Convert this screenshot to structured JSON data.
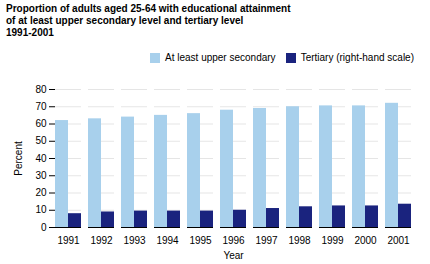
{
  "chart_data": {
    "type": "bar",
    "title": "Proportion of adults aged 25-64 with educational attainment\nof at least upper secondary level and tertiary level\n1991-2001",
    "categories": [
      "1991",
      "1992",
      "1993",
      "1994",
      "1995",
      "1996",
      "1997",
      "1998",
      "1999",
      "2000",
      "2001"
    ],
    "series": [
      {
        "name": "At least upper secondary",
        "color": "#a8d0ec",
        "values": [
          62,
          63,
          64,
          65,
          66,
          68,
          69,
          70,
          70.5,
          70.5,
          72
        ]
      },
      {
        "name": "Tertiary (right-hand scale)",
        "color": "#1a237e",
        "values": [
          8,
          9,
          9.5,
          9.5,
          9.5,
          10,
          11,
          12,
          12.5,
          12.5,
          13.5
        ]
      }
    ],
    "xlabel": "Year",
    "ylabel": "Percent",
    "ylim": [
      0,
      80
    ],
    "yticks": [
      0,
      10,
      20,
      30,
      40,
      50,
      60,
      70,
      80
    ],
    "grid": true,
    "legend": "upper right"
  }
}
